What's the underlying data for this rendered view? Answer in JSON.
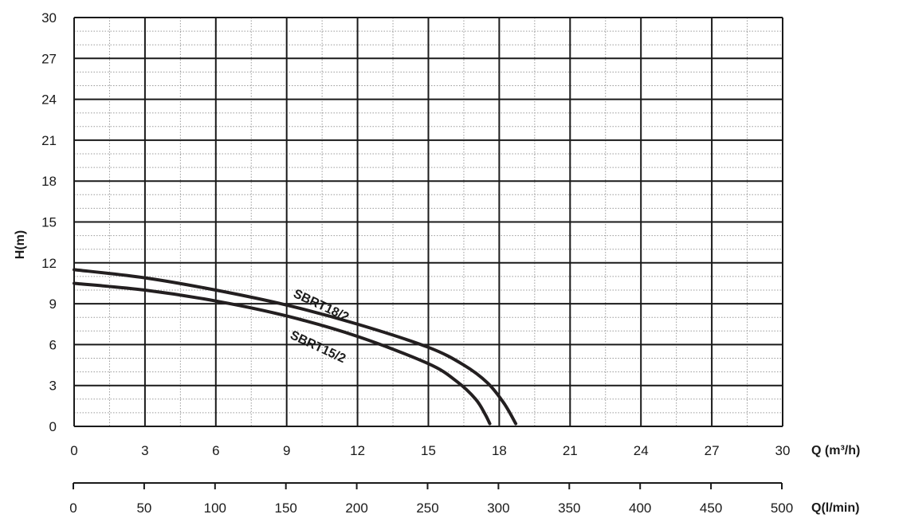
{
  "chart_data": {
    "type": "line",
    "title": "",
    "xlabel": "Q (m³/h)",
    "x2label": "Q(l/min)",
    "ylabel": "H(m)",
    "xlim": [
      0,
      30
    ],
    "ylim": [
      0,
      30
    ],
    "x_ticks": [
      "0",
      "3",
      "6",
      "9",
      "12",
      "15",
      "18",
      "21",
      "24",
      "27",
      "30"
    ],
    "y_ticks": [
      "0",
      "3",
      "6",
      "9",
      "12",
      "15",
      "18",
      "21",
      "24",
      "27",
      "30"
    ],
    "x2lim": [
      0,
      500
    ],
    "x2_ticks": [
      "0",
      "50",
      "100",
      "150",
      "200",
      "250",
      "300",
      "350",
      "400",
      "450",
      "500"
    ],
    "grid": true,
    "series": [
      {
        "name": "SBRT18/2",
        "color": "#231f20",
        "x": [
          0,
          3,
          6,
          9,
          12,
          15,
          16.5,
          17.5,
          18.2,
          18.7
        ],
        "y": [
          11.5,
          10.9,
          10.0,
          8.9,
          7.5,
          5.8,
          4.5,
          3.2,
          1.7,
          0.2
        ]
      },
      {
        "name": "SBRT15/2",
        "color": "#231f20",
        "x": [
          0,
          3,
          6,
          9,
          12,
          15,
          16.2,
          17.0,
          17.4,
          17.6
        ],
        "y": [
          10.5,
          10.0,
          9.2,
          8.1,
          6.6,
          4.6,
          3.3,
          2.0,
          0.9,
          0.2
        ]
      }
    ]
  }
}
